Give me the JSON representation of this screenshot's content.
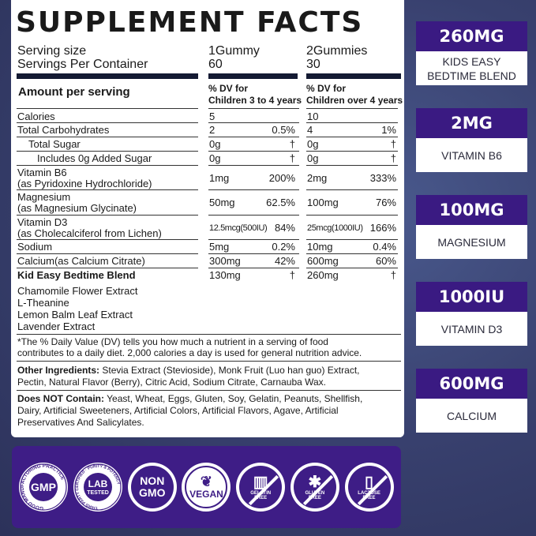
{
  "title": "SUPPLEMENT FACTS",
  "serving": {
    "size_label": "Serving size",
    "per_container_label": "Servings Per Container",
    "col1_size": "1Gummy",
    "col1_count": "60",
    "col2_size": "2Gummies",
    "col2_count": "30"
  },
  "header": {
    "amount": "Amount per serving",
    "col1": [
      "% DV for",
      "Children 3 to 4 years"
    ],
    "col2": [
      "% DV for",
      "Children over 4 years"
    ]
  },
  "rows": [
    {
      "name": "Calories",
      "a1": "5",
      "d1": "",
      "a2": "10",
      "d2": ""
    },
    {
      "name": "Total Carbohydrates",
      "a1": "2",
      "d1": "0.5%",
      "a2": "4",
      "d2": "1%"
    },
    {
      "name": "Total Sugar",
      "a1": "0g",
      "d1": "†",
      "a2": "0g",
      "d2": "†"
    },
    {
      "name": "Includes 0g Added Sugar",
      "a1": "0g",
      "d1": "†",
      "a2": "0g",
      "d2": "†"
    },
    {
      "name": "Vitamin B6",
      "sub": "(as Pyridoxine Hydrochloride)",
      "a1": "1mg",
      "d1": "200%",
      "a2": "2mg",
      "d2": "333%"
    },
    {
      "name": "Magnesium",
      "sub": "(as Magnesium Glycinate)",
      "a1": "50mg",
      "d1": "62.5%",
      "a2": "100mg",
      "d2": "76%"
    },
    {
      "name": "Vitamin D3",
      "sub": "(as Cholecalciferol from Lichen)",
      "a1": "12.5mcg(500IU)",
      "d1": "84%",
      "a2": "25mcg(1000IU)",
      "d2": "166%"
    },
    {
      "name": "Sodium",
      "a1": "5mg",
      "d1": "0.2%",
      "a2": "10mg",
      "d2": "0.4%"
    },
    {
      "name": "Calcium(as Calcium Citrate)",
      "a1": "300mg",
      "d1": "42%",
      "a2": "600mg",
      "d2": "60%"
    },
    {
      "name": "Kid Easy Bedtime Blend",
      "a1": "130mg",
      "d1": "†",
      "a2": "260mg",
      "d2": "†"
    }
  ],
  "blend": [
    "Chamomile Flower Extract",
    "L-Theanine",
    "Lemon Balm Leaf Extract",
    "Lavender Extract"
  ],
  "footnote": [
    "*The % Daily Value (DV) tells you how much a nutrient in a serving of food",
    "contributes to a daily diet. 2,000 calories a day is used for general nutrition advice."
  ],
  "other": {
    "label": "Other Ingredients:",
    "line1": " Stevia Extract (Stevioside), Monk Fruit (Luo han guo) Extract,",
    "line2": "Pectin, Natural Flavor (Berry), Citric Acid, Sodium Citrate, Carnauba Wax."
  },
  "not": {
    "label": "Does NOT Contain:",
    "line1": " Yeast, Wheat, Eggs, Gluten, Soy, Gelatin, Peanuts, Shellfish,",
    "line2": "Dairy, Artificial Sweeteners, Artificial Colors, Artificial Flavors, Agave, Artificial",
    "line3": "Preservatives And Salicylates."
  },
  "cards": [
    {
      "amount": "260MG",
      "label": "KIDS EASY BEDTIME BLEND"
    },
    {
      "amount": "2MG",
      "label": "VITAMIN B6"
    },
    {
      "amount": "100MG",
      "label": "MAGNESIUM"
    },
    {
      "amount": "1000IU",
      "label": "VITAMIN D3"
    },
    {
      "amount": "600MG",
      "label": "CALCIUM"
    }
  ],
  "badges": [
    {
      "main": "GMP",
      "ring": "GOOD MANUFACTURING PRACTICE",
      "icon": "gmp-seal-icon"
    },
    {
      "main": "LAB",
      "sub": "TESTED",
      "ring": "THIRD PARTY CERTIFIED · PURITY & POTENCY",
      "icon": "lab-tested-seal-icon"
    },
    {
      "main": "NON",
      "sub": "GMO",
      "icon": "non-gmo-icon"
    },
    {
      "main": "VEGAN",
      "icon": "vegan-leaf-icon"
    },
    {
      "main": "GELATIN",
      "sub": "FREE",
      "icon": "gelatin-free-icon"
    },
    {
      "main": "GLUTEN",
      "sub": "FREE",
      "icon": "gluten-free-icon"
    },
    {
      "main": "LACTOSE",
      "sub": "FREE",
      "icon": "lactose-free-icon"
    }
  ],
  "colors": {
    "purple": "#3e1d86",
    "navy": "#141a33",
    "background": "#38406e"
  }
}
